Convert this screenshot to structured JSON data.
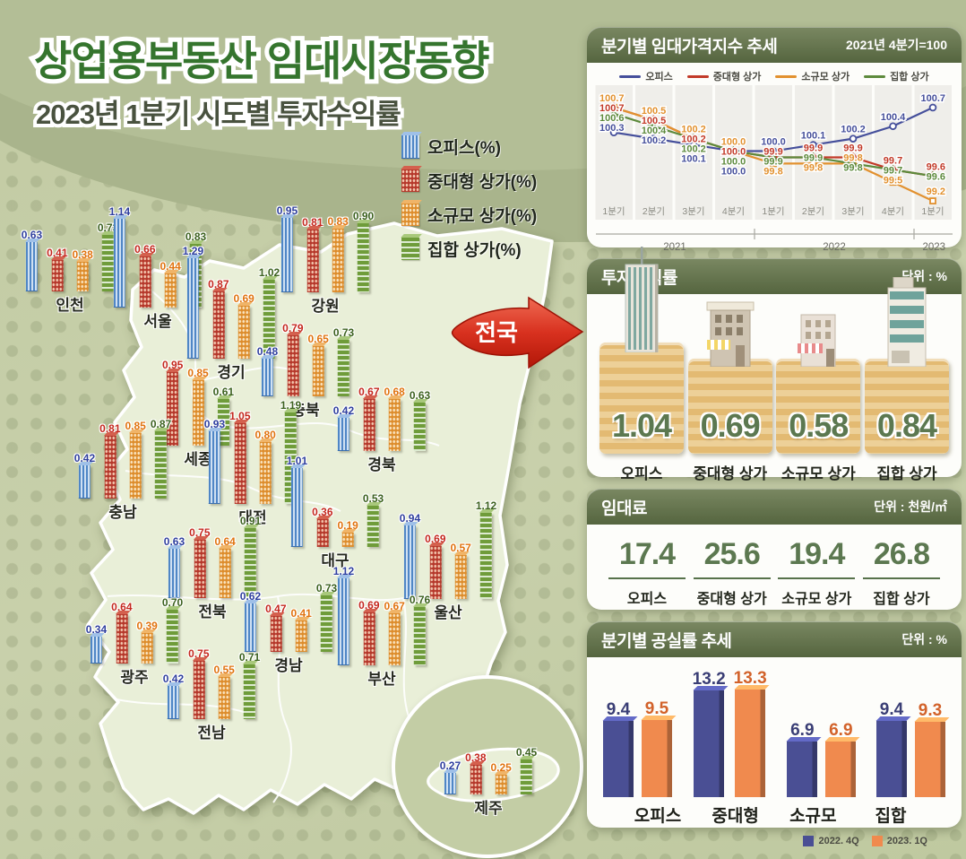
{
  "header": {
    "title": "상업용부동산 임대시장동향",
    "subtitle": "2023년 1분기 시도별 투자수익률"
  },
  "map": {
    "legend": [
      {
        "label": "오피스(%)",
        "key": "office"
      },
      {
        "label": "중대형 상가(%)",
        "key": "medium"
      },
      {
        "label": "소규모 상가(%)",
        "key": "small"
      },
      {
        "label": "집합 상가(%)",
        "key": "aggregate"
      }
    ],
    "arrow_label": "전국",
    "label_colors": {
      "office": "#2f3f9e",
      "medium": "#c4281e",
      "small": "#e0730f",
      "aggregate": "#3c611f"
    },
    "regions": [
      {
        "name": "인천",
        "values": [
          "0.63",
          "0.41",
          "0.38",
          "0.73"
        ]
      },
      {
        "name": "서울",
        "values": [
          "1.14",
          "0.66",
          "0.44",
          "0.83"
        ]
      },
      {
        "name": "경기",
        "values": [
          "1.29",
          "0.87",
          "0.69",
          "1.02"
        ]
      },
      {
        "name": "강원",
        "values": [
          "0.95",
          "0.81",
          "0.83",
          "0.90"
        ]
      },
      {
        "name": "충북",
        "values": [
          "0.48",
          "0.79",
          "0.65",
          "0.73"
        ]
      },
      {
        "name": "세종",
        "values": [
          null,
          "0.95",
          "0.85",
          "0.61"
        ]
      },
      {
        "name": "충남",
        "values": [
          "0.42",
          "0.81",
          "0.85",
          "0.87"
        ]
      },
      {
        "name": "대전",
        "values": [
          "0.93",
          "1.05",
          "0.80",
          "1.19"
        ]
      },
      {
        "name": "경북",
        "values": [
          "0.42",
          "0.67",
          "0.68",
          "0.63"
        ]
      },
      {
        "name": "대구",
        "values": [
          "1.01",
          "0.36",
          "0.19",
          "0.53"
        ]
      },
      {
        "name": "울산",
        "values": [
          "0.94",
          "0.69",
          "0.57",
          "1.12"
        ]
      },
      {
        "name": "전북",
        "values": [
          "0.63",
          "0.75",
          "0.64",
          "0.91"
        ]
      },
      {
        "name": "광주",
        "values": [
          "0.34",
          "0.64",
          "0.39",
          "0.70"
        ]
      },
      {
        "name": "경남",
        "values": [
          "0.62",
          "0.47",
          "0.41",
          "0.73"
        ]
      },
      {
        "name": "부산",
        "values": [
          "1.12",
          "0.69",
          "0.67",
          "0.76"
        ]
      },
      {
        "name": "전남",
        "values": [
          "0.42",
          "0.75",
          "0.55",
          "0.71"
        ]
      },
      {
        "name": "제주",
        "values": [
          "0.27",
          "0.38",
          "0.25",
          "0.45"
        ],
        "inset": true
      }
    ]
  },
  "chart_data": [
    {
      "id": "rent_index",
      "type": "line",
      "title": "분기별 임대가격지수 추세",
      "note": "2021년 4분기=100",
      "categories": [
        "1분기",
        "2분기",
        "3분기",
        "4분기",
        "1분기",
        "2분기",
        "3분기",
        "4분기",
        "1분기"
      ],
      "year_groups": [
        {
          "label": "2021",
          "span": 4
        },
        {
          "label": "2022",
          "span": 4
        },
        {
          "label": "2023",
          "span": 1
        }
      ],
      "ylim": [
        99.1,
        100.8
      ],
      "legend_position": "top",
      "series": [
        {
          "name": "오피스",
          "color": "#454f9b",
          "marker": "circle",
          "values": [
            100.3,
            100.2,
            100.1,
            100.0,
            100.0,
            100.1,
            100.2,
            100.4,
            100.7
          ]
        },
        {
          "name": "중대형 상가",
          "color": "#c23a28",
          "marker": "diamond",
          "values": [
            100.7,
            100.5,
            100.2,
            100.0,
            99.9,
            99.9,
            99.9,
            99.7,
            99.6
          ]
        },
        {
          "name": "소규모 상가",
          "color": "#e2912f",
          "marker": "square",
          "values": [
            100.7,
            100.5,
            100.2,
            100.0,
            99.8,
            99.8,
            99.8,
            99.5,
            99.2
          ]
        },
        {
          "name": "집합 상가",
          "color": "#5d8a3c",
          "marker": "triangle",
          "values": [
            100.6,
            100.4,
            100.2,
            100.0,
            99.9,
            99.9,
            99.8,
            99.7,
            99.6
          ]
        }
      ]
    },
    {
      "id": "vacancy",
      "type": "bar",
      "title": "분기별 공실률 추세",
      "unit": "단위 : %",
      "categories": [
        "오피스",
        "중대형",
        "소규모",
        "집합"
      ],
      "ylim": [
        0,
        15
      ],
      "legend_position": "bottom-right",
      "series": [
        {
          "name": "2022. 4Q",
          "color": "#4a4f94",
          "label_color": "#3a3e75",
          "values": [
            9.4,
            13.2,
            6.9,
            9.4
          ]
        },
        {
          "name": "2023. 1Q",
          "color": "#f08a4e",
          "label_color": "#d2622a",
          "values": [
            9.5,
            13.3,
            6.9,
            9.3
          ]
        }
      ]
    }
  ],
  "investment": {
    "title": "투자수익률",
    "unit": "단위 : %",
    "items": [
      {
        "label": "오피스",
        "value": "1.04",
        "icon": "office-building-icon"
      },
      {
        "label": "중대형 상가",
        "value": "0.69",
        "icon": "medium-shop-icon"
      },
      {
        "label": "소규모 상가",
        "value": "0.58",
        "icon": "small-shop-icon"
      },
      {
        "label": "집합 상가",
        "value": "0.84",
        "icon": "aggregate-building-icon"
      }
    ]
  },
  "rent": {
    "title": "임대료",
    "unit": "단위 : 천원/㎡",
    "items": [
      {
        "label": "오피스",
        "value": "17.4"
      },
      {
        "label": "중대형 상가",
        "value": "25.6"
      },
      {
        "label": "소규모 상가",
        "value": "19.4"
      },
      {
        "label": "집합 상가",
        "value": "26.8"
      }
    ]
  }
}
